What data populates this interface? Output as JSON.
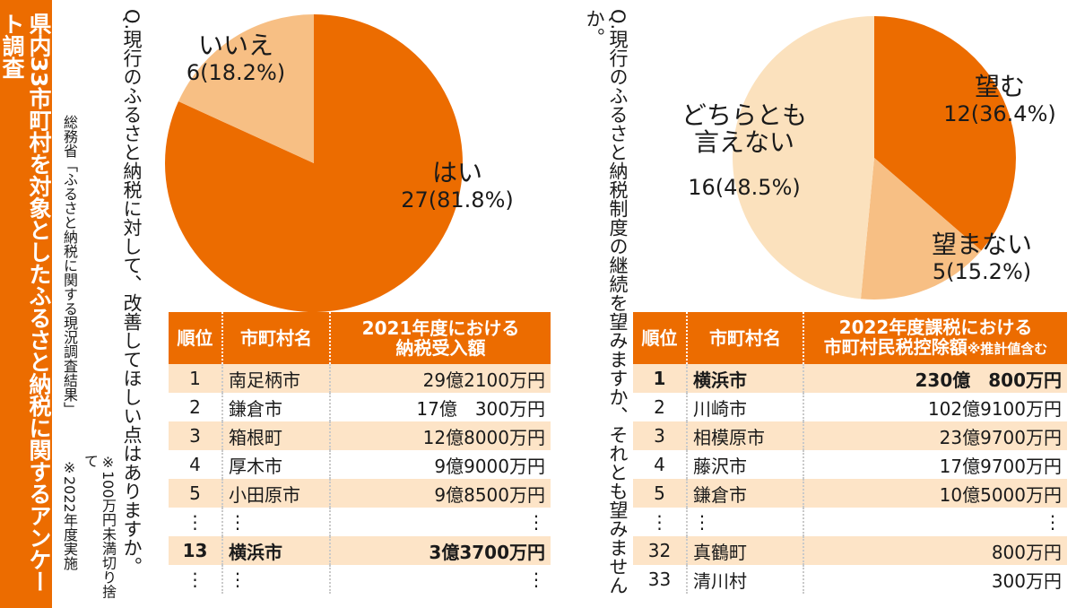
{
  "side_title": "県内33市町村を対象としたふるさと納税に関するアンケート調査",
  "source": "総務省「ふるさと納税に関する現況調査結果」",
  "notes": [
    "※100万円未満切り捨て",
    "※2022年度実施"
  ],
  "colors": {
    "orange": "#ec6c00",
    "light_orange": "#f7bf84",
    "cream": "#fbe1bd",
    "row_alt": "#fde4c7"
  },
  "q1": {
    "question": "Q.現行のふるさと納税に対して、改善してほしい点はありますか。",
    "labels": {
      "yes_name": "はい",
      "yes_value": "27(81.8%)",
      "no_name": "いいえ",
      "no_value": "6(18.2%)"
    }
  },
  "q2": {
    "question": "Q.現行のふるさと納税制度の継続を望みますか、それとも望みませんか。",
    "labels": {
      "want_name": "望む",
      "want_value": "12(36.4%)",
      "dontwant_name": "望まない",
      "dontwant_value": "5(15.2%)",
      "neither_line1": "どちらとも",
      "neither_line2": "言えない",
      "neither_value": "16(48.5%)"
    }
  },
  "table1": {
    "headers": [
      "順位",
      "市町村名",
      "2021年度における",
      "納税受入額"
    ],
    "rows": [
      {
        "rank": "1",
        "name": "南足柄市",
        "amount": "29億2100万円"
      },
      {
        "rank": "2",
        "name": "鎌倉市",
        "amount": "17億　300万円"
      },
      {
        "rank": "3",
        "name": "箱根町",
        "amount": "12億8000万円"
      },
      {
        "rank": "4",
        "name": "厚木市",
        "amount": "9億9000万円"
      },
      {
        "rank": "5",
        "name": "小田原市",
        "amount": "9億8500万円"
      },
      {
        "rank": "⋮",
        "name": "⋮",
        "amount": "⋮"
      },
      {
        "rank": "13",
        "name": "横浜市",
        "amount": "3億3700万円"
      },
      {
        "rank": "⋮",
        "name": "⋮",
        "amount": "⋮"
      }
    ]
  },
  "table2": {
    "headers": [
      "順位",
      "市町村名",
      "2022年度課税における",
      "市町村民税控除額",
      "※推計値含む"
    ],
    "rows": [
      {
        "rank": "1",
        "name": "横浜市",
        "amount": "230億　800万円"
      },
      {
        "rank": "2",
        "name": "川崎市",
        "amount": "102億9100万円"
      },
      {
        "rank": "3",
        "name": "相模原市",
        "amount": "23億9700万円"
      },
      {
        "rank": "4",
        "name": "藤沢市",
        "amount": "17億9700万円"
      },
      {
        "rank": "5",
        "name": "鎌倉市",
        "amount": "10億5000万円"
      },
      {
        "rank": "⋮",
        "name": "⋮",
        "amount": "⋮"
      },
      {
        "rank": "32",
        "name": "真鶴町",
        "amount": "800万円"
      },
      {
        "rank": "33",
        "name": "清川村",
        "amount": "300万円"
      }
    ]
  },
  "chart_data": [
    {
      "type": "pie",
      "title": "Q.現行のふるさと納税に対して、改善してほしい点はありますか。",
      "categories": [
        "はい",
        "いいえ"
      ],
      "values": [
        27,
        6
      ],
      "percentages": [
        81.8,
        18.2
      ]
    },
    {
      "type": "pie",
      "title": "Q.現行のふるさと納税制度の継続を望みますか、それとも望みませんか。",
      "categories": [
        "望む",
        "望まない",
        "どちらとも言えない"
      ],
      "values": [
        12,
        5,
        16
      ],
      "percentages": [
        36.4,
        15.2,
        48.5
      ]
    }
  ]
}
